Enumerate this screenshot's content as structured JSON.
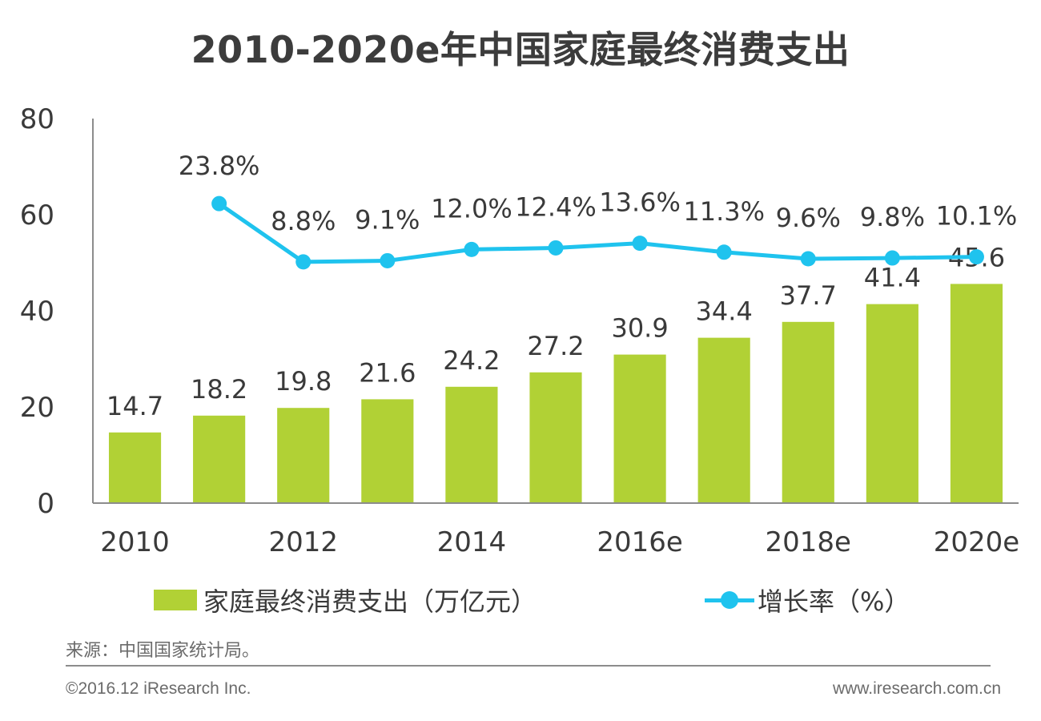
{
  "title": "2010-2020e年中国家庭最终消费支出",
  "colors": {
    "bar": "#b1d135",
    "line": "#1fc3ee",
    "axis": "#8c8c8c"
  },
  "chart_data": {
    "type": "bar",
    "title": "2010-2020e年中国家庭最终消费支出",
    "categories": [
      "2010",
      "2011",
      "2012",
      "2013",
      "2014",
      "2015",
      "2016e",
      "2017e",
      "2018e",
      "2019e",
      "2020e"
    ],
    "x_tick_labels": [
      {
        "category": "2010",
        "label": "2010"
      },
      {
        "category": "2012",
        "label": "2012"
      },
      {
        "category": "2014",
        "label": "2014"
      },
      {
        "category": "2016e",
        "label": "2016e"
      },
      {
        "category": "2018e",
        "label": "2018e"
      },
      {
        "category": "2020e",
        "label": "2020e"
      }
    ],
    "y_ticks": [
      "0",
      "20",
      "40",
      "60",
      "80"
    ],
    "ylim": [
      0,
      80
    ],
    "series": [
      {
        "name": "家庭最终消费支出（万亿元）",
        "type": "bar",
        "values": [
          14.7,
          18.2,
          19.8,
          21.6,
          24.2,
          27.2,
          30.9,
          34.4,
          37.7,
          41.4,
          45.6
        ],
        "labels": [
          "14.7",
          "18.2",
          "19.8",
          "21.6",
          "24.2",
          "27.2",
          "30.9",
          "34.4",
          "37.7",
          "41.4",
          "45.6"
        ]
      },
      {
        "name": "增长率（%）",
        "type": "line",
        "values": [
          null,
          23.8,
          8.8,
          9.1,
          12.0,
          12.4,
          13.6,
          11.3,
          9.6,
          9.8,
          10.1
        ],
        "labels": [
          null,
          "23.8%",
          "8.8%",
          "9.1%",
          "12.0%",
          "12.4%",
          "13.6%",
          "11.3%",
          "9.6%",
          "9.8%",
          "10.1%"
        ]
      }
    ],
    "legend": "bottom"
  },
  "legend": {
    "bar_label": "家庭最终消费支出（万亿元）",
    "line_label": "增长率（%）"
  },
  "footer": {
    "source": "来源：中国国家统计局。",
    "copyright": "©2016.12 iResearch Inc.",
    "website": "www.iresearch.com.cn"
  }
}
